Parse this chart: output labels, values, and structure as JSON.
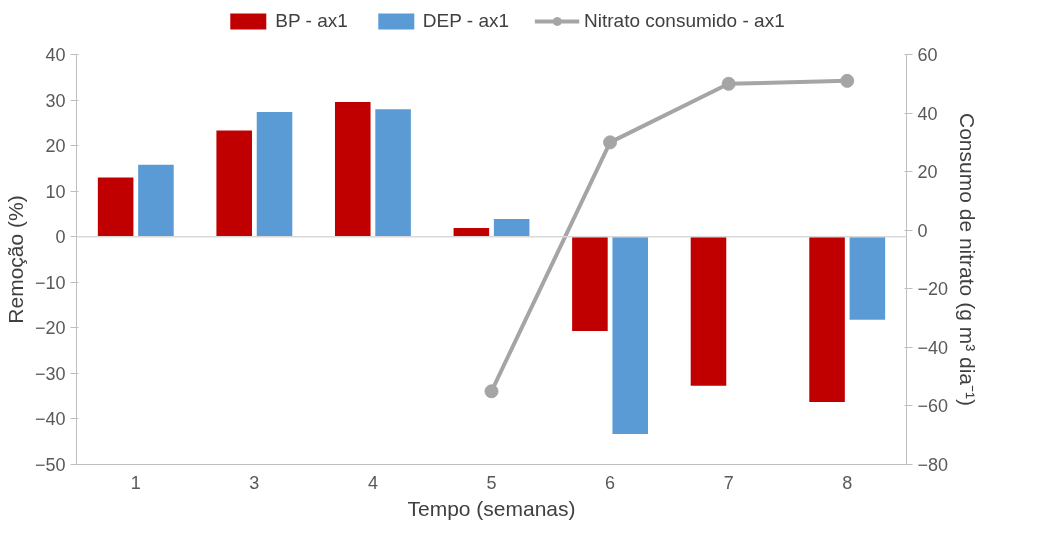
{
  "chart_data": {
    "type": "bar",
    "xlabel": "Tempo (semanas)",
    "ylabel": "Remoção (%)",
    "y2label": "Consumo de nitrato (g m³ dia⁻¹)",
    "categories": [
      "1",
      "3",
      "4",
      "5",
      "6",
      "7",
      "8"
    ],
    "series": [
      {
        "name": "BP - ax1",
        "color": "#c00000",
        "values": [
          13,
          23.3,
          29.6,
          1.9,
          -20.7,
          -32.7,
          -36.3
        ]
      },
      {
        "name": "DEP - ax1",
        "color": "#5b9bd5",
        "values": [
          15.8,
          27.4,
          28,
          3.9,
          -43.3,
          null,
          -18.2
        ]
      },
      {
        "name": "Nitrato consumido - ax1",
        "type": "line",
        "axis": "y2",
        "color": "#a5a5a5",
        "marker": "circle",
        "values": [
          null,
          null,
          null,
          -55,
          30,
          50,
          51
        ]
      }
    ],
    "ylim": [
      -50,
      40
    ],
    "yticks": [
      -50,
      -40,
      -30,
      -20,
      -10,
      0,
      10,
      20,
      30,
      40
    ],
    "y2lim": [
      -80,
      60
    ],
    "y2ticks": [
      -80,
      -60,
      -40,
      -20,
      0,
      20,
      40,
      60
    ],
    "ref_lines": [
      {
        "axis": "y",
        "value": 0,
        "color": "#d9d9d9"
      }
    ],
    "grid": false,
    "legend": "top"
  }
}
